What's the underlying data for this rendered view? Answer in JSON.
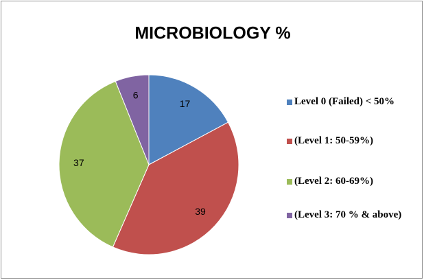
{
  "chart_data": {
    "type": "pie",
    "title": "MICROBIOLOGY %",
    "categories": [
      "Level 0 (Failed) < 50%",
      "(Level 1: 50-59%)",
      "(Level 2: 60-69%)",
      "(Level 3: 70 % & above)"
    ],
    "values": [
      17,
      39,
      37,
      6
    ],
    "colors": [
      "#4f81bd",
      "#c0504d",
      "#9bbb59",
      "#8064a2"
    ],
    "legend": "right"
  }
}
